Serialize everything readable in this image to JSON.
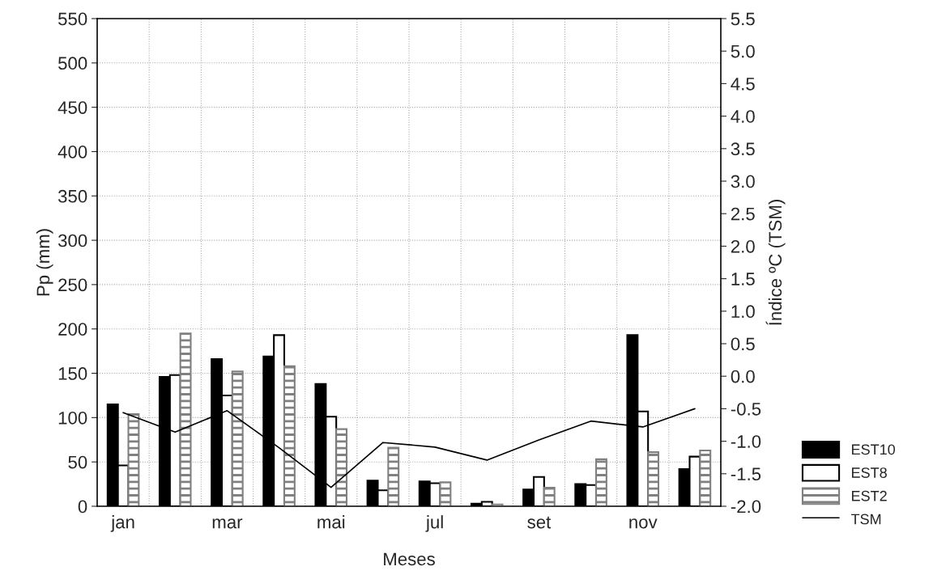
{
  "chart_data": {
    "type": "bar",
    "xlabel": "Meses",
    "ylabel": "Pp (mm)",
    "y2label": "Índice ºC (TSM)",
    "categories": [
      "jan",
      null,
      "mar",
      null,
      "mai",
      null,
      "jul",
      null,
      "set",
      null,
      "nov",
      null
    ],
    "series": [
      {
        "name": "EST10",
        "color": "#000000",
        "values": [
          115,
          146,
          166,
          169,
          138,
          29,
          28,
          3,
          19,
          25,
          193,
          42
        ]
      },
      {
        "name": "EST8",
        "color": "#ffffff",
        "values": [
          46,
          148,
          125,
          193,
          101,
          18,
          26,
          5,
          33,
          24,
          107,
          56
        ]
      },
      {
        "name": "EST2",
        "color": "#808080",
        "values": [
          104,
          195,
          152,
          158,
          87,
          66,
          27,
          2,
          21,
          53,
          61,
          63
        ]
      },
      {
        "name": "TSM",
        "type": "line",
        "axis": "y2",
        "color": "#000000",
        "values": [
          -0.56,
          -0.86,
          -0.53,
          -1.1,
          -1.71,
          -1.02,
          -1.09,
          -1.29,
          -0.98,
          -0.69,
          -0.78,
          -0.5
        ]
      }
    ],
    "ylim": [
      0,
      550
    ],
    "yticks": [
      0,
      50,
      100,
      150,
      200,
      250,
      300,
      350,
      400,
      450,
      500,
      550
    ],
    "y2lim": [
      -2.0,
      5.5
    ],
    "y2ticks": [
      {
        "value": -2.0,
        "label": "-2.0"
      },
      {
        "value": -1.5,
        "label": "-1.5"
      },
      {
        "value": -1.0,
        "label": "-1.0"
      },
      {
        "value": -0.5,
        "label": "-0.5"
      },
      {
        "value": 0.0,
        "label": "0.0"
      },
      {
        "value": 0.5,
        "label": "0.5"
      },
      {
        "value": 1.0,
        "label": "1.0"
      },
      {
        "value": 1.5,
        "label": "1.5"
      },
      {
        "value": 2.0,
        "label": "2.0"
      },
      {
        "value": 2.5,
        "label": "2.5"
      },
      {
        "value": 3.0,
        "label": "3.0"
      },
      {
        "value": 3.5,
        "label": "3.5"
      },
      {
        "value": 4.0,
        "label": "4.0"
      },
      {
        "value": 4.5,
        "label": "4.5"
      },
      {
        "value": 5.0,
        "label": "5.0"
      },
      {
        "value": 5.5,
        "label": "5.5"
      }
    ],
    "grid": true,
    "legend": "bottom right",
    "line_style": "solid",
    "marker": "none"
  }
}
